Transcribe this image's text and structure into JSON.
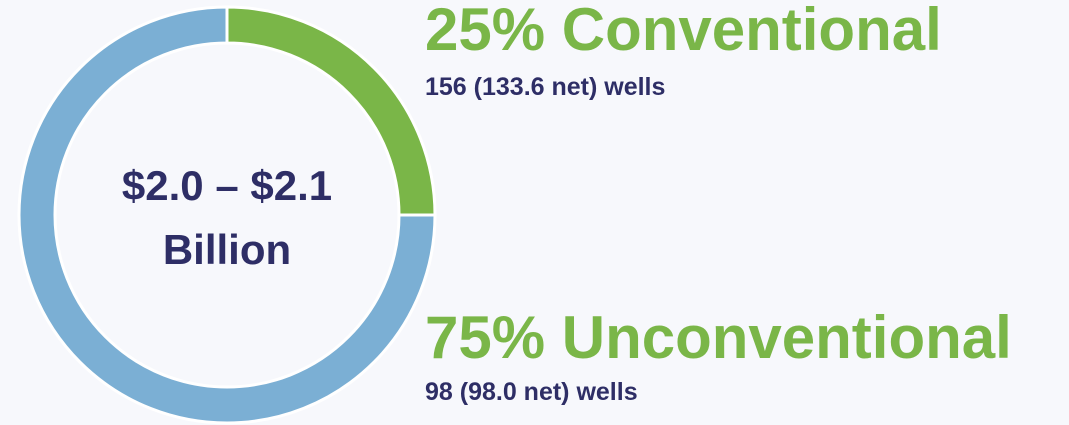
{
  "chart_data": {
    "type": "pie",
    "donut": true,
    "categories": [
      "Conventional",
      "Unconventional"
    ],
    "values": [
      25,
      75
    ],
    "value_labels": [
      "25%",
      "75%"
    ],
    "colors": [
      "#7ab648",
      "#7bafd4"
    ],
    "details": [
      "156 (133.6 net) wells",
      "98 (98.0 net) wells"
    ],
    "center_text": [
      "$2.0 – $2.1",
      "Billion"
    ]
  }
}
